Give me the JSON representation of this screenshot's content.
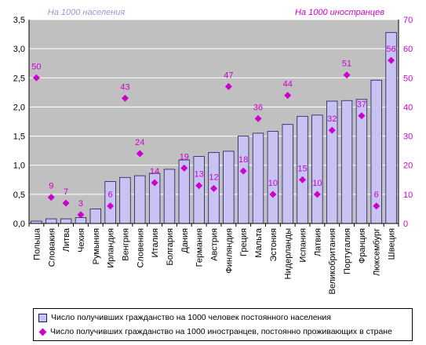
{
  "chart_data": {
    "type": "bar",
    "left_axis_title": "На 1000 населения",
    "right_axis_title": "На 1000 иностранцев",
    "categories": [
      "Польша",
      "Словакия",
      "Литва",
      "Чехия",
      "Румыния",
      "Ирландия",
      "Венгрия",
      "Словения",
      "Италия",
      "Болгария",
      "Дания",
      "Германия",
      "Австрия",
      "Финляндия",
      "Греция",
      "Мальта",
      "Эстония",
      "Нидерланды",
      "Испания",
      "Латвия",
      "Великобритания",
      "Португалия",
      "Франция",
      "Люксембург",
      "Швеция"
    ],
    "series": [
      {
        "name": "Число получивших гражданство на 1000 человек постоянного населения",
        "type": "bar",
        "axis": "left",
        "values": [
          0.04,
          0.08,
          0.08,
          0.1,
          0.25,
          0.72,
          0.79,
          0.82,
          0.86,
          0.93,
          1.09,
          1.15,
          1.22,
          1.24,
          1.5,
          1.55,
          1.58,
          1.7,
          1.84,
          1.86,
          2.1,
          2.11,
          2.13,
          2.46,
          3.28
        ]
      },
      {
        "name": "Число получивших гражданство на 1000 иностранцев, постоянно проживающих в стране",
        "type": "scatter",
        "axis": "right",
        "values": [
          50,
          9,
          7,
          3,
          null,
          6,
          43,
          24,
          14,
          null,
          19,
          13,
          12,
          47,
          18,
          36,
          10,
          44,
          15,
          10,
          32,
          51,
          37,
          6,
          56
        ],
        "labels": [
          "50",
          "9",
          "7",
          "3",
          "",
          "6",
          "43",
          "24",
          "14",
          "",
          "19",
          "13",
          "12",
          "47",
          "18",
          "36",
          "10",
          "44",
          "15",
          "10",
          "32",
          "51",
          "37",
          "6",
          "56"
        ]
      }
    ],
    "y_left": {
      "min": 0,
      "max": 3.5,
      "step": 0.5,
      "ticks": [
        "0,0",
        "0,5",
        "1,0",
        "1,5",
        "2,0",
        "2,5",
        "3,0",
        "3,5"
      ]
    },
    "y_right": {
      "min": 0,
      "max": 70,
      "step": 10,
      "ticks": [
        "0",
        "10",
        "20",
        "30",
        "40",
        "50",
        "60",
        "70"
      ]
    },
    "grid": true,
    "legend_position": "bottom",
    "colors": {
      "plot_bg": "#c0c0c0",
      "bar_fill": "#c9c3f2",
      "bar_stroke": "#1a1a66",
      "marker": "#cc00cc",
      "label_color": "#cc00cc",
      "left_title_color": "#9999cc",
      "right_title_color": "#cc00cc",
      "right_axis_text": "#cc00cc",
      "gridline": "#ffffff"
    }
  }
}
